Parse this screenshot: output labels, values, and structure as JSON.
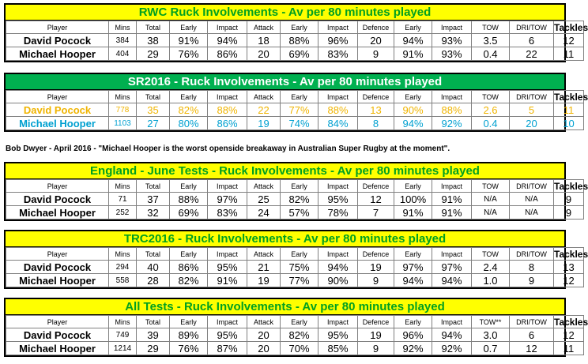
{
  "headers": [
    "Player",
    "Mins",
    "Total",
    "Early",
    "Impact",
    "Attack",
    "Early",
    "Impact",
    "Defence",
    "Early",
    "Impact",
    "TOW",
    "DRI/TOW",
    "Tackles"
  ],
  "sections": [
    {
      "title": "RWC Ruck Involvements - Av per 80 minutes played",
      "headers": [
        "Player",
        "Mins",
        "Total",
        "Early",
        "Impact",
        "Attack",
        "Early",
        "Impact",
        "Defence",
        "Early",
        "Impact",
        "TOW",
        "DRI/TOW",
        "Tackles"
      ],
      "rows": [
        [
          "David Pocock",
          "384",
          "38",
          "91%",
          "94%",
          "18",
          "88%",
          "96%",
          "20",
          "94%",
          "93%",
          "3.5",
          "6",
          "12"
        ],
        [
          "Michael Hooper",
          "404",
          "29",
          "76%",
          "86%",
          "20",
          "69%",
          "83%",
          "9",
          "91%",
          "93%",
          "0.4",
          "22",
          "11"
        ]
      ]
    },
    {
      "title": "SR2016 -  Ruck Involvements - Av per 80 minutes played",
      "headers": [
        "Player",
        "Mins",
        "Total",
        "Early",
        "Impact",
        "Attack",
        "Early",
        "Impact",
        "Defence",
        "Early",
        "Impact",
        "TOW",
        "DRI/TOW",
        "Tackles"
      ],
      "rows": [
        [
          "David Pocock",
          "778",
          "35",
          "82%",
          "88%",
          "22",
          "77%",
          "88%",
          "13",
          "90%",
          "88%",
          "2.6",
          "5",
          "11"
        ],
        [
          "Michael Hooper",
          "1103",
          "27",
          "80%",
          "86%",
          "19",
          "74%",
          "84%",
          "8",
          "94%",
          "92%",
          "0.4",
          "20",
          "10"
        ]
      ]
    },
    {
      "title": "England  - June Tests  - Ruck Involvements - Av per 80 minutes played",
      "headers": [
        "Player",
        "Mins",
        "Total",
        "Early",
        "Impact",
        "Attack",
        "Early",
        "Impact",
        "Defence",
        "Early",
        "Impact",
        "TOW",
        "DRI/TOW",
        "Tackles"
      ],
      "rows": [
        [
          "David Pocock",
          "71",
          "37",
          "88%",
          "97%",
          "25",
          "82%",
          "95%",
          "12",
          "100%",
          "91%",
          "N/A",
          "N/A",
          "9"
        ],
        [
          "Michael Hooper",
          "252",
          "32",
          "69%",
          "83%",
          "24",
          "57%",
          "78%",
          "7",
          "91%",
          "91%",
          "N/A",
          "N/A",
          "9"
        ]
      ]
    },
    {
      "title": "TRC2016 - Ruck Involvements - Av per 80 minutes played",
      "headers": [
        "Player",
        "Mins",
        "Total",
        "Early",
        "Impact",
        "Attack",
        "Early",
        "Impact",
        "Defence",
        "Early",
        "Impact",
        "TOW",
        "DRI/TOW",
        "Tackles"
      ],
      "rows": [
        [
          "David Pocock",
          "294",
          "40",
          "86%",
          "95%",
          "21",
          "75%",
          "94%",
          "19",
          "97%",
          "97%",
          "2.4",
          "8",
          "13"
        ],
        [
          "Michael Hooper",
          "558",
          "28",
          "82%",
          "91%",
          "19",
          "77%",
          "90%",
          "9",
          "94%",
          "94%",
          "1.0",
          "9",
          "12"
        ]
      ]
    },
    {
      "title": "All Tests - Ruck Involvements - Av per 80 minutes played",
      "headers": [
        "Player",
        "Mins",
        "Total",
        "Early",
        "Impact",
        "Attack",
        "Early",
        "Impact",
        "Defence",
        "Early",
        "Impact",
        "TOW**",
        "DRI/TOW",
        "Tackles"
      ],
      "rows": [
        [
          "David Pocock",
          "749",
          "39",
          "89%",
          "95%",
          "20",
          "82%",
          "95%",
          "19",
          "96%",
          "94%",
          "3.0",
          "6",
          "12"
        ],
        [
          "Michael Hooper",
          "1214",
          "29",
          "76%",
          "87%",
          "20",
          "70%",
          "85%",
          "9",
          "92%",
          "92%",
          "0.7",
          "12",
          "11"
        ]
      ]
    }
  ],
  "quote": "Bob Dwyer - April 2016 - \"Michael Hooper is the worst openside breakaway in Australian Super Rugby at the moment\".",
  "colors": {
    "yellow_title": "#ffff00",
    "green_title": "#00b050",
    "title_text_green": "#00a020",
    "pocock_sr": "#f0b400",
    "hooper_sr": "#00a0d0"
  }
}
